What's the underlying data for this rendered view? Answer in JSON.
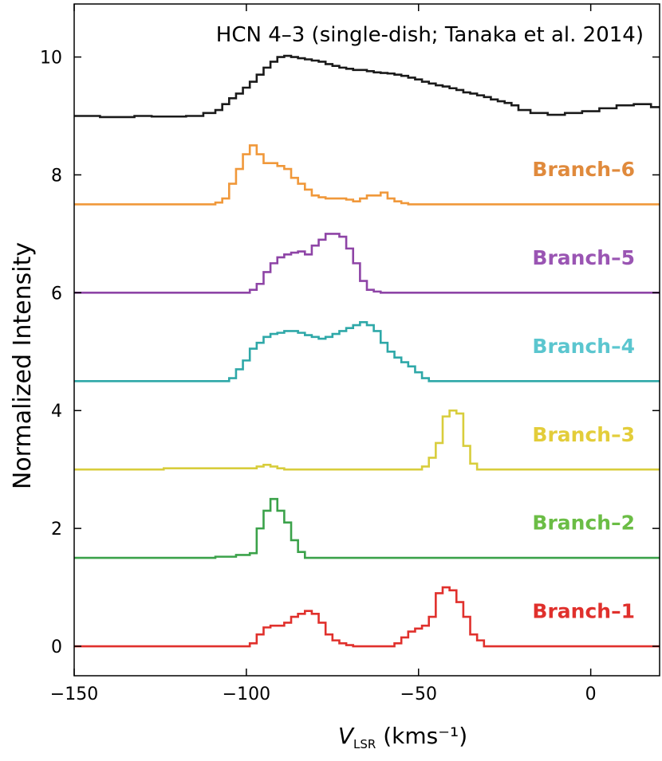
{
  "chart_data": {
    "type": "line",
    "drawstyle": "steps",
    "title": "HCN 4–3 (single-dish; Tanaka et al. 2014)",
    "xlabel_main": "V",
    "xlabel_sub": "LSR",
    "xlabel_units": " (kms⁻¹)",
    "ylabel": "Normalized Intensity",
    "xlim": [
      -150,
      20
    ],
    "ylim": [
      -0.5,
      10.9
    ],
    "xticks": [
      -150,
      -100,
      -50,
      0
    ],
    "xtick_labels": [
      "−150",
      "−100",
      "−50",
      "0"
    ],
    "yticks": [
      0,
      2,
      4,
      6,
      8,
      10
    ],
    "ytick_labels": [
      "0",
      "2",
      "4",
      "6",
      "8",
      "10"
    ],
    "grid": false,
    "legend": "none (labels next to curves)",
    "series": [
      {
        "name": "HCN 4–3 (single-dish; Tanaka et al. 2014)",
        "color": "#1a1a1a",
        "label_shown": false,
        "x": [
          -150,
          -145,
          -140,
          -135,
          -130,
          -125,
          -120,
          -115,
          -110,
          -108,
          -106,
          -104,
          -102,
          -100,
          -98,
          -96,
          -94,
          -92,
          -90,
          -88,
          -86,
          -84,
          -82,
          -80,
          -78,
          -76,
          -74,
          -72,
          -70,
          -68,
          -66,
          -64,
          -62,
          -60,
          -58,
          -56,
          -54,
          -52,
          -50,
          -48,
          -46,
          -44,
          -42,
          -40,
          -38,
          -36,
          -34,
          -32,
          -30,
          -28,
          -26,
          -24,
          -22,
          -20,
          -15,
          -10,
          -5,
          0,
          5,
          10,
          15,
          20
        ],
        "y": [
          9.0,
          9.0,
          8.98,
          8.98,
          9.0,
          8.99,
          8.99,
          9.0,
          9.05,
          9.1,
          9.2,
          9.3,
          9.38,
          9.48,
          9.58,
          9.7,
          9.82,
          9.92,
          10.0,
          10.02,
          10.0,
          9.98,
          9.96,
          9.94,
          9.92,
          9.88,
          9.85,
          9.82,
          9.8,
          9.78,
          9.78,
          9.76,
          9.74,
          9.73,
          9.72,
          9.7,
          9.68,
          9.65,
          9.62,
          9.58,
          9.55,
          9.52,
          9.5,
          9.47,
          9.44,
          9.4,
          9.38,
          9.35,
          9.32,
          9.28,
          9.25,
          9.22,
          9.18,
          9.1,
          9.05,
          9.02,
          9.05,
          9.08,
          9.13,
          9.18,
          9.2,
          9.15
        ]
      },
      {
        "name": "Branch–6",
        "color": "#f0983a",
        "label_color": "#e08a3c",
        "label_y": 8.1,
        "x": [
          -150,
          -110,
          -108,
          -106,
          -104,
          -102,
          -100,
          -98,
          -96,
          -94,
          -92,
          -90,
          -88,
          -86,
          -84,
          -82,
          -80,
          -78,
          -76,
          -74,
          -72,
          -70,
          -68,
          -66,
          -64,
          -62,
          -60,
          -58,
          -56,
          -54,
          -52,
          -50,
          -30,
          20
        ],
        "y": [
          7.5,
          7.5,
          7.53,
          7.6,
          7.85,
          8.1,
          8.35,
          8.5,
          8.35,
          8.2,
          8.2,
          8.15,
          8.1,
          7.95,
          7.85,
          7.75,
          7.65,
          7.62,
          7.6,
          7.6,
          7.6,
          7.58,
          7.55,
          7.6,
          7.65,
          7.65,
          7.7,
          7.6,
          7.55,
          7.52,
          7.5,
          7.5,
          7.5,
          7.5
        ]
      },
      {
        "name": "Branch–5",
        "color": "#8e44a6",
        "label_color": "#9a55b3",
        "label_y": 6.6,
        "x": [
          -150,
          -100,
          -98,
          -96,
          -94,
          -92,
          -90,
          -88,
          -86,
          -84,
          -82,
          -80,
          -78,
          -76,
          -74,
          -72,
          -70,
          -68,
          -66,
          -64,
          -62,
          -60,
          -58,
          -56,
          -54,
          -52,
          -50,
          20
        ],
        "y": [
          6.0,
          6.0,
          6.05,
          6.15,
          6.35,
          6.5,
          6.6,
          6.65,
          6.68,
          6.7,
          6.65,
          6.8,
          6.9,
          7.0,
          7.0,
          6.95,
          6.75,
          6.5,
          6.2,
          6.05,
          6.02,
          6.0,
          6.0,
          6.0,
          6.0,
          6.0,
          6.0,
          6.0
        ]
      },
      {
        "name": "Branch–4",
        "color": "#2ea8a8",
        "label_color": "#5bc6cf",
        "label_y": 5.1,
        "x": [
          -150,
          -106,
          -104,
          -102,
          -100,
          -98,
          -96,
          -94,
          -92,
          -90,
          -88,
          -86,
          -84,
          -82,
          -80,
          -78,
          -76,
          -74,
          -72,
          -70,
          -68,
          -66,
          -64,
          -62,
          -60,
          -58,
          -56,
          -54,
          -52,
          -50,
          -48,
          -46,
          -44,
          -40,
          20
        ],
        "y": [
          4.5,
          4.5,
          4.55,
          4.7,
          4.85,
          5.05,
          5.15,
          5.25,
          5.3,
          5.32,
          5.35,
          5.35,
          5.32,
          5.28,
          5.25,
          5.22,
          5.25,
          5.3,
          5.35,
          5.4,
          5.45,
          5.5,
          5.45,
          5.35,
          5.15,
          5.0,
          4.9,
          4.82,
          4.75,
          4.65,
          4.55,
          4.5,
          4.5,
          4.5,
          4.5
        ]
      },
      {
        "name": "Branch–3",
        "color": "#d8cd3c",
        "label_color": "#e3cd3a",
        "label_y": 3.6,
        "x": [
          -150,
          -98,
          -96,
          -94,
          -92,
          -90,
          -88,
          -86,
          -50,
          -48,
          -46,
          -44,
          -42,
          -40,
          -38,
          -36,
          -34,
          -32,
          -30,
          20
        ],
        "y": [
          3.0,
          3.02,
          3.05,
          3.08,
          3.05,
          3.02,
          3.0,
          3.0,
          3.0,
          3.05,
          3.2,
          3.45,
          3.9,
          4.0,
          3.95,
          3.4,
          3.1,
          3.0,
          3.0,
          3.0
        ]
      },
      {
        "name": "Branch–2",
        "color": "#3ba24a",
        "label_color": "#6bbd45",
        "label_y": 2.1,
        "x": [
          -150,
          -110,
          -108,
          -106,
          -104,
          -102,
          -100,
          -98,
          -96,
          -94,
          -92,
          -90,
          -88,
          -86,
          -84,
          -82,
          20
        ],
        "y": [
          1.5,
          1.5,
          1.52,
          1.52,
          1.52,
          1.55,
          1.55,
          1.58,
          2.0,
          2.3,
          2.5,
          2.3,
          2.1,
          1.8,
          1.6,
          1.5,
          1.5
        ]
      },
      {
        "name": "Branch–1",
        "color": "#e0302c",
        "label_color": "#e0302c",
        "label_y": 0.6,
        "x": [
          -150,
          -100,
          -98,
          -96,
          -94,
          -92,
          -90,
          -88,
          -86,
          -84,
          -82,
          -80,
          -78,
          -76,
          -74,
          -72,
          -70,
          -68,
          -66,
          -64,
          -62,
          -60,
          -58,
          -56,
          -54,
          -52,
          -50,
          -48,
          -46,
          -44,
          -42,
          -40,
          -38,
          -36,
          -34,
          -32,
          -30,
          20
        ],
        "y": [
          0.0,
          0.0,
          0.05,
          0.2,
          0.32,
          0.35,
          0.35,
          0.4,
          0.5,
          0.55,
          0.6,
          0.55,
          0.4,
          0.2,
          0.1,
          0.05,
          0.02,
          0.0,
          0.0,
          0.0,
          0.0,
          0.0,
          0.0,
          0.05,
          0.15,
          0.25,
          0.3,
          0.35,
          0.5,
          0.9,
          1.0,
          0.95,
          0.75,
          0.5,
          0.2,
          0.1,
          0.0,
          0.0
        ]
      }
    ]
  }
}
